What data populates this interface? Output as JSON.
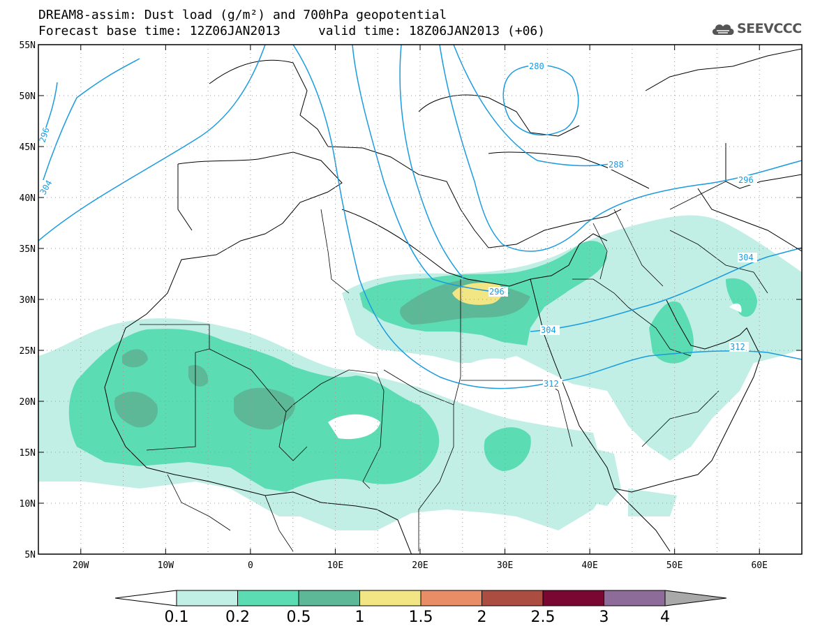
{
  "header": {
    "title_line1": "DREAM8-assim: Dust load (g/m²) and 700hPa geopotential",
    "title_line2": "Forecast base time: 12Z06JAN2013     valid time: 18Z06JAN2013 (+06)",
    "logo_text": "SEEVCCC"
  },
  "map": {
    "lon_range": [
      -25,
      65
    ],
    "lat_range": [
      5,
      55
    ],
    "lat_labels": [
      "55N",
      "50N",
      "45N",
      "40N",
      "35N",
      "30N",
      "25N",
      "20N",
      "15N",
      "10N",
      "5N"
    ],
    "lon_labels": [
      "20W",
      "10W",
      "0",
      "10E",
      "20E",
      "30E",
      "40E",
      "50E",
      "60E"
    ],
    "grid": "dotted",
    "contour_color": "#1a9be0",
    "contour_labels": [
      "280",
      "288",
      "296",
      "296",
      "296",
      "304",
      "304",
      "304",
      "312",
      "312"
    ]
  },
  "colorbar": {
    "colors": [
      "#ffffff",
      "#c1efe6",
      "#5cdcb3",
      "#5cb897",
      "#f2e583",
      "#e98d66",
      "#ac4d42",
      "#7a0731",
      "#8e6c9a",
      "#a9a9a9"
    ],
    "tick_labels": [
      "0.1",
      "0.2",
      "0.5",
      "1",
      "1.5",
      "2",
      "2.5",
      "3",
      "4"
    ]
  }
}
